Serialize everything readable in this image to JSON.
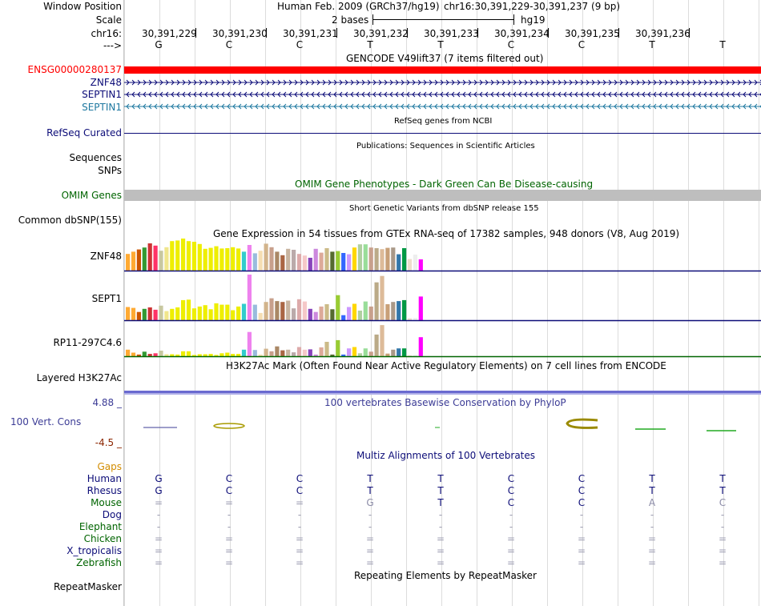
{
  "header": {
    "window_position_label": "Window Position",
    "assembly_text": "Human Feb. 2009 (GRCh37/hg19)",
    "position_text": "chr16:30,391,229-30,391,237 (9 bp)",
    "scale_label": "Scale",
    "scale_value": "2 bases",
    "scale_db": "hg19",
    "chrom_label": "chr16:",
    "strand_label": "--->",
    "coordinates": [
      "30,391,229",
      "30,391,230",
      "30,391,231",
      "30,391,232",
      "30,391,233",
      "30,391,234",
      "30,391,235",
      "30,391,236"
    ],
    "bases": [
      "G",
      "C",
      "C",
      "T",
      "T",
      "C",
      "C",
      "T",
      "T"
    ]
  },
  "gencode": {
    "title": "GENCODE V49lift37 (7 items filtered out)",
    "items": [
      {
        "label": "ENSG00000280137",
        "color": "#ff0000"
      },
      {
        "label": "ZNF48",
        "color": "#0c0c78"
      },
      {
        "label": "SEPTIN1",
        "color": "#0c0c78"
      },
      {
        "label": "SEPTIN1",
        "color": "#1e78a0"
      }
    ]
  },
  "refseq": {
    "label": "RefSeq Curated",
    "title": "RefSeq genes from NCBI",
    "color": "#0c0c78"
  },
  "publications": {
    "title": "Publications: Sequences in Scientific Articles",
    "labels": [
      "Sequences",
      "SNPs"
    ]
  },
  "omim": {
    "label": "OMIM Genes",
    "title": "OMIM Gene Phenotypes - Dark Green Can Be Disease-causing",
    "color": "#006400",
    "bar_color": "#bebebe"
  },
  "dbsnp": {
    "label": "Common dbSNP(155)",
    "title": "Short Genetic Variants from dbSNP release 155"
  },
  "gtex": {
    "title": "Gene Expression in 54 tissues from GTEx RNA-seq of 17382 samples, 948 donors (V8, Aug 2019)",
    "tissue_colors": [
      "#FFAA33",
      "#FFAA33",
      "#CC5500",
      "#339933",
      "#CC3333",
      "#FF3366",
      "#C8C8A0",
      "#F0E68C",
      "#EEEE00",
      "#EEEE00",
      "#EEEE00",
      "#EEEE00",
      "#EEEE00",
      "#EEEE00",
      "#EEEE00",
      "#EEEE00",
      "#EEEE00",
      "#EEEE00",
      "#EEEE00",
      "#EEEE00",
      "#EEEE00",
      "#33CCCC",
      "#EE82EE",
      "#99BBDD",
      "#F5DEB3",
      "#D2B48C",
      "#C8A08C",
      "#AA8866",
      "#AA6644",
      "#C8B4A0",
      "#BBAAAA",
      "#DDAAAA",
      "#F5C8C8",
      "#8844BB",
      "#CC88DD",
      "#DDAA99",
      "#CCBB88",
      "#556B2F",
      "#99CC33",
      "#3366FF",
      "#CC99FF",
      "#FFD700",
      "#B0D0A0",
      "#99DD99",
      "#C8A08C",
      "#BBAA88",
      "#DDBB99",
      "#C8A078",
      "#AA9988",
      "#3377AA",
      "#009944",
      "#EEDDCC",
      "#FFFFFF",
      "#FF00FF"
    ],
    "genes": [
      {
        "label": "ZNF48",
        "axis_color": "#0c0c78",
        "values": [
          0.52,
          0.59,
          0.66,
          0.72,
          0.85,
          0.78,
          0.62,
          0.73,
          0.92,
          0.94,
          1.0,
          0.92,
          0.9,
          0.83,
          0.68,
          0.71,
          0.76,
          0.69,
          0.7,
          0.73,
          0.69,
          0.59,
          0.8,
          0.54,
          0.62,
          0.84,
          0.73,
          0.59,
          0.48,
          0.68,
          0.65,
          0.52,
          0.47,
          0.4,
          0.68,
          0.56,
          0.7,
          0.59,
          0.61,
          0.55,
          0.51,
          0.72,
          0.82,
          0.82,
          0.72,
          0.7,
          0.67,
          0.71,
          0.72,
          0.51,
          0.7,
          0.36,
          0.5,
          0.35
        ]
      },
      {
        "label": "SEPT1",
        "axis_color": "#0c0c78",
        "values": [
          0.29,
          0.27,
          0.18,
          0.25,
          0.28,
          0.23,
          0.32,
          0.2,
          0.25,
          0.28,
          0.44,
          0.45,
          0.26,
          0.3,
          0.33,
          0.24,
          0.37,
          0.34,
          0.34,
          0.22,
          0.3,
          0.36,
          1.0,
          0.34,
          0.16,
          0.4,
          0.48,
          0.42,
          0.4,
          0.43,
          0.26,
          0.46,
          0.41,
          0.25,
          0.18,
          0.3,
          0.35,
          0.24,
          0.55,
          0.11,
          0.29,
          0.36,
          0.21,
          0.41,
          0.3,
          0.83,
          0.97,
          0.35,
          0.4,
          0.42,
          0.44,
          0.04,
          0.05,
          0.52
        ]
      },
      {
        "label": "RP11-297C4.6",
        "axis_color": "#006400",
        "values": [
          0.2,
          0.11,
          0.05,
          0.14,
          0.07,
          0.09,
          0.17,
          0.06,
          0.06,
          0.05,
          0.15,
          0.15,
          0.04,
          0.06,
          0.06,
          0.07,
          0.04,
          0.09,
          0.11,
          0.07,
          0.07,
          0.2,
          0.74,
          0.19,
          0.05,
          0.23,
          0.15,
          0.3,
          0.18,
          0.2,
          0.12,
          0.28,
          0.2,
          0.21,
          0.05,
          0.27,
          0.44,
          0.05,
          0.49,
          0.05,
          0.24,
          0.28,
          0.09,
          0.24,
          0.14,
          0.66,
          0.95,
          0.08,
          0.2,
          0.24,
          0.24,
          0.02,
          0.04,
          0.58
        ]
      }
    ]
  },
  "h3k27ac": {
    "label": "Layered H3K27Ac",
    "title": "H3K27Ac Mark (Often Found Near Active Regulatory Elements) on 7 cell lines from ENCODE"
  },
  "conservation": {
    "label": "100 Vert. Cons",
    "title": "100 vertebrates Basewise Conservation by PhyloP",
    "max": "4.88 _",
    "min": "-4.5 _",
    "color": "#3c3c96",
    "neg_color": "#8b2500"
  },
  "multiz": {
    "title": "Multiz Alignments of 100 Vertebrates",
    "gaps_label": "Gaps",
    "gaps_color": "#d28c00",
    "species": [
      {
        "name": "Human",
        "color": "#0c0c78",
        "seq": [
          "G",
          "C",
          "C",
          "T",
          "T",
          "C",
          "C",
          "T",
          "T"
        ]
      },
      {
        "name": "Rhesus",
        "color": "#0c0c78",
        "seq": [
          "G",
          "C",
          "C",
          "T",
          "T",
          "C",
          "C",
          "T",
          "T"
        ]
      },
      {
        "name": "Mouse",
        "color": "#006400",
        "seq": [
          "=",
          "=",
          "=",
          "G",
          "T",
          "C",
          "C",
          "A",
          "C"
        ]
      },
      {
        "name": "Dog",
        "color": "#0c0c78",
        "seq": [
          "-",
          "-",
          "-",
          "-",
          "-",
          "-",
          "-",
          "-",
          "-"
        ]
      },
      {
        "name": "Elephant",
        "color": "#006400",
        "seq": [
          "-",
          "-",
          "-",
          "-",
          "-",
          "-",
          "-",
          "-",
          "-"
        ]
      },
      {
        "name": "Chicken",
        "color": "#006400",
        "seq": [
          "=",
          "=",
          "=",
          "=",
          "=",
          "=",
          "=",
          "=",
          "="
        ]
      },
      {
        "name": "X_tropicalis",
        "color": "#0c0c78",
        "seq": [
          "=",
          "=",
          "=",
          "=",
          "=",
          "=",
          "=",
          "=",
          "="
        ]
      },
      {
        "name": "Zebrafish",
        "color": "#006400",
        "seq": [
          "=",
          "=",
          "=",
          "=",
          "=",
          "=",
          "=",
          "=",
          "="
        ]
      }
    ]
  },
  "repeatmasker": {
    "label": "RepeatMasker",
    "title": "Repeating Elements by RepeatMasker"
  }
}
